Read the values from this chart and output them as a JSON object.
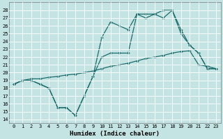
{
  "xlabel": "Humidex (Indice chaleur)",
  "background_color": "#c4e4e4",
  "grid_color": "#ffffff",
  "line_color": "#1a6b6b",
  "xlim": [
    -0.5,
    23.5
  ],
  "ylim": [
    13.5,
    29
  ],
  "yticks": [
    14,
    15,
    16,
    17,
    18,
    19,
    20,
    21,
    22,
    23,
    24,
    25,
    26,
    27,
    28
  ],
  "xticks": [
    0,
    1,
    2,
    3,
    4,
    5,
    6,
    7,
    8,
    9,
    10,
    11,
    12,
    13,
    14,
    15,
    16,
    17,
    18,
    19,
    20,
    21,
    22,
    23
  ],
  "line1_x": [
    0,
    1,
    2,
    3,
    4,
    5,
    6,
    7,
    8,
    9,
    10,
    11,
    12,
    13,
    14,
    15,
    16,
    17,
    18,
    19,
    20,
    21,
    22,
    23
  ],
  "line1_y": [
    18.5,
    19.0,
    19.2,
    19.2,
    19.4,
    19.5,
    19.7,
    19.8,
    20.0,
    20.2,
    20.5,
    20.8,
    21.0,
    21.2,
    21.5,
    21.8,
    22.0,
    22.2,
    22.5,
    22.7,
    22.8,
    21.0,
    20.8,
    20.5
  ],
  "line2_x": [
    0,
    1,
    2,
    3,
    4,
    5,
    6,
    7,
    8,
    9,
    10,
    11,
    12,
    13,
    14,
    15,
    16,
    17,
    18,
    19,
    20,
    21,
    22,
    23
  ],
  "line2_y": [
    18.5,
    19.0,
    19.0,
    18.5,
    18.0,
    15.5,
    15.5,
    14.5,
    17.0,
    19.5,
    24.5,
    26.5,
    26.0,
    25.5,
    27.5,
    27.5,
    27.5,
    28.0,
    28.0,
    25.5,
    23.5,
    22.5,
    20.5,
    20.5
  ],
  "line3_x": [
    0,
    1,
    2,
    3,
    4,
    5,
    6,
    7,
    8,
    9,
    10,
    11,
    12,
    13,
    14,
    15,
    16,
    17,
    18,
    19,
    20,
    21,
    22,
    23
  ],
  "line3_y": [
    18.5,
    19.0,
    19.0,
    18.5,
    18.0,
    15.5,
    15.5,
    14.5,
    17.0,
    19.5,
    22.0,
    22.5,
    22.5,
    22.5,
    27.5,
    27.0,
    27.5,
    27.0,
    28.0,
    25.0,
    23.5,
    22.5,
    20.5,
    20.5
  ]
}
